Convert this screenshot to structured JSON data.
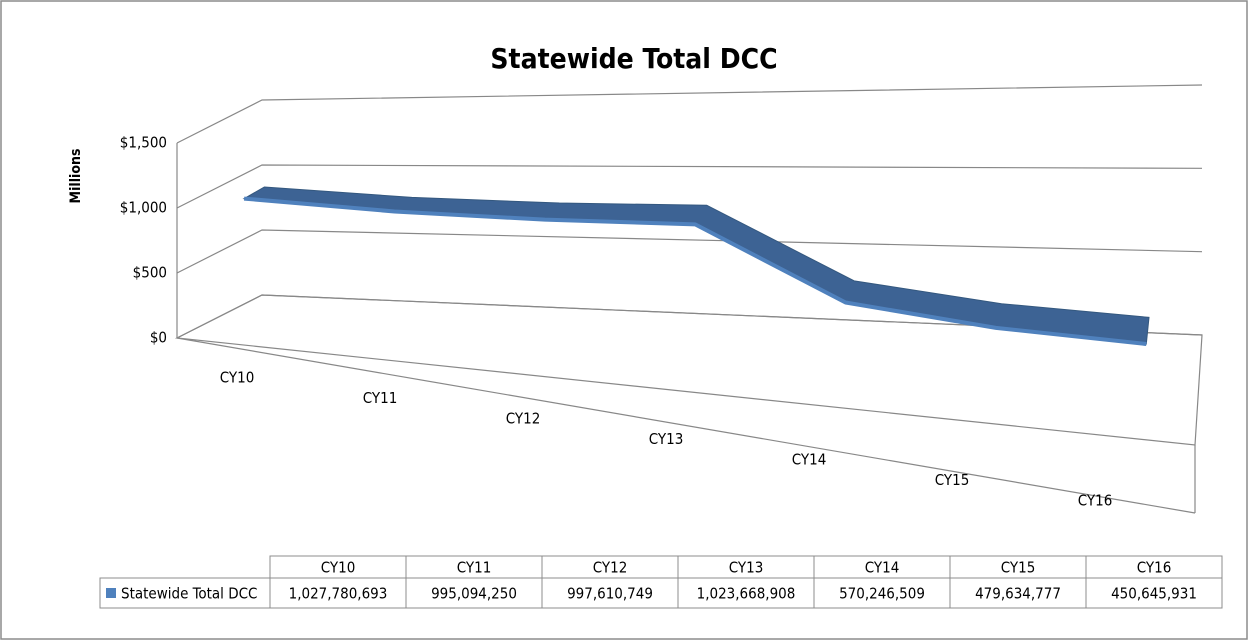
{
  "chart_data": {
    "type": "line",
    "title": "Statewide Total DCC",
    "y_axis_label": "Millions",
    "categories": [
      "CY10",
      "CY11",
      "CY12",
      "CY13",
      "CY14",
      "CY15",
      "CY16"
    ],
    "series": [
      {
        "name": "Statewide Total DCC",
        "color": "#4f81bd",
        "values": [
          1027.780693,
          995.09425,
          997.610749,
          1023.668908,
          570.246509,
          479.634777,
          450.645931
        ],
        "value_labels": [
          "1,027,780,693",
          "995,094,250",
          "997,610,749",
          "1,023,668,908",
          "570,246,509",
          "479,634,777",
          "450,645,931"
        ]
      }
    ],
    "ylim": [
      0,
      1500
    ],
    "yticks": [
      {
        "value": 0,
        "label": "$0"
      },
      {
        "value": 500,
        "label": "$500"
      },
      {
        "value": 1000,
        "label": "$1,000"
      },
      {
        "value": 1500,
        "label": "$1,500"
      }
    ],
    "grid": true
  }
}
